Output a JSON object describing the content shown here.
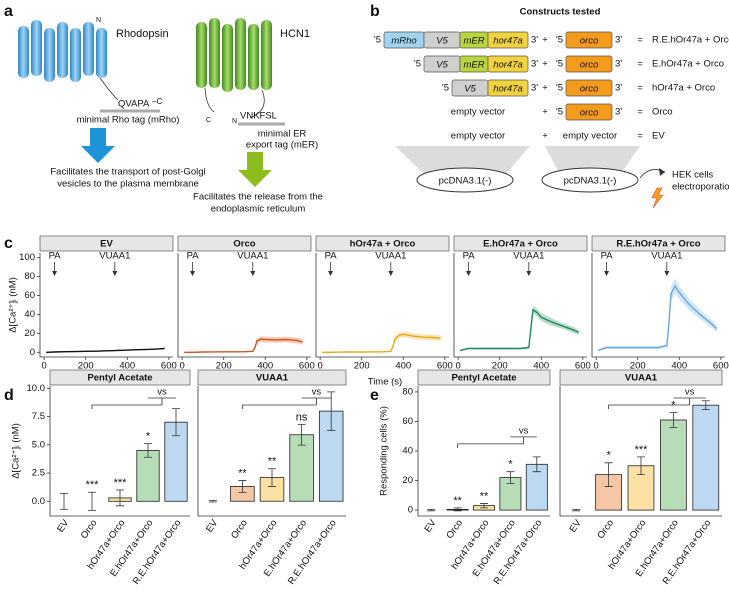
{
  "panel_labels": [
    "a",
    "b",
    "c",
    "d",
    "e"
  ],
  "panel_a": {
    "rhodopsin": "Rhodopsin",
    "hcn1": "HCN1",
    "rho_tag": "QVAPA",
    "rho_c": "–C",
    "n": "N",
    "c": "C",
    "rho_tag_name": "minimal Rho tag (mRho)",
    "er_tag": "VNKFSL",
    "er_tag_name": [
      "minimal ER",
      "export tag (mER)"
    ],
    "rho_text": [
      "Facilitates the transport of post-Golgi",
      "vesicles to the plasma membrane"
    ],
    "er_text": [
      "Facilitates the release from the",
      "endoplasmic reticulum"
    ]
  },
  "panel_b": {
    "title": "Constructs tested",
    "prime5": "'5",
    "prime3": "3'",
    "plus": "+",
    "equals": "=",
    "box_colors": {
      "mRho": "#9fd3ee",
      "V5": "#cfcfcf",
      "mER": "#b9d43c",
      "hor47a": "#f3d33d",
      "orco": "#f49a1d"
    },
    "rows": [
      {
        "left": [
          "mRho",
          "V5",
          "mER",
          "hor47a"
        ],
        "right": [
          "orco"
        ],
        "result": "R.E.hOr47a + Orco"
      },
      {
        "left": [
          "V5",
          "mER",
          "hor47a"
        ],
        "right": [
          "orco"
        ],
        "result": "E.hOr47a + Orco"
      },
      {
        "left": [
          "V5",
          "hor47a"
        ],
        "right": [
          "orco"
        ],
        "result": "hOr47a + Orco"
      },
      {
        "left": "empty vector",
        "right": [
          "orco"
        ],
        "result": "Orco"
      },
      {
        "left": "empty vector",
        "right": "empty vector",
        "result": "EV"
      }
    ],
    "vector": "pcDNA3.1(-)",
    "hek": [
      "HEK cells",
      "electroporation"
    ]
  },
  "chart_data": [
    {
      "type": "line",
      "title": "EV",
      "color": "#111111",
      "ylabel": "Δ[Ca²⁺]ᵢ (nM)",
      "x": [
        10,
        50,
        100,
        150,
        200,
        250,
        300,
        340,
        350,
        360,
        380,
        400,
        450,
        500,
        550,
        580
      ],
      "values": [
        0,
        0.3,
        0.6,
        0.8,
        1,
        1.2,
        1.5,
        1.8,
        1.9,
        2,
        2.1,
        2.3,
        2.7,
        3,
        3.5,
        4
      ],
      "errors": [
        0.6,
        0.6,
        0.6,
        0.6,
        0.6,
        0.6,
        0.6,
        0.6,
        0.6,
        0.6,
        0.6,
        0.6,
        0.6,
        0.6,
        0.6,
        0.6
      ],
      "xlim": [
        -20,
        620
      ],
      "ylim": [
        -5,
        105
      ],
      "xticks": [
        0,
        200,
        400,
        600
      ],
      "yticks": [
        0,
        20,
        40,
        60,
        80,
        100
      ],
      "annotations": [
        {
          "text": "PA",
          "x": 50
        },
        {
          "text": "VUAA1",
          "x": 340
        }
      ]
    },
    {
      "type": "line",
      "title": "Orco",
      "color": "#d4541c",
      "x": [
        10,
        50,
        100,
        150,
        200,
        250,
        300,
        340,
        350,
        360,
        380,
        400,
        450,
        500,
        550,
        580
      ],
      "values": [
        0,
        0,
        0.3,
        0.4,
        0.5,
        0.5,
        0.6,
        1,
        5,
        12,
        14,
        13.5,
        13,
        13.5,
        12.5,
        11
      ],
      "errors": [
        0.5,
        0.5,
        0.5,
        0.5,
        0.5,
        0.5,
        0.5,
        0.8,
        2,
        3,
        3,
        3,
        3,
        3,
        3,
        3
      ],
      "xlim": [
        -20,
        620
      ],
      "ylim": [
        -5,
        105
      ],
      "xticks": [
        0,
        200,
        400,
        600
      ],
      "annotations": [
        {
          "text": "PA",
          "x": 50
        },
        {
          "text": "VUAA1",
          "x": 340
        }
      ]
    },
    {
      "type": "line",
      "title": "hOr47a + Orco",
      "color": "#e8a91c",
      "xlabel": "Time (s)",
      "x": [
        10,
        50,
        100,
        150,
        200,
        250,
        300,
        340,
        350,
        360,
        380,
        400,
        450,
        500,
        550,
        580
      ],
      "values": [
        0,
        0,
        0.2,
        0.3,
        0.3,
        0.4,
        0.5,
        1,
        6,
        14,
        18,
        19,
        17,
        16,
        15.5,
        15
      ],
      "errors": [
        0.5,
        0.5,
        0.5,
        0.5,
        0.5,
        0.5,
        0.5,
        0.8,
        2,
        3,
        3,
        3,
        3,
        3,
        3,
        3
      ],
      "xlim": [
        -20,
        620
      ],
      "ylim": [
        -5,
        105
      ],
      "xticks": [
        0,
        200,
        400,
        600
      ],
      "annotations": [
        {
          "text": "PA",
          "x": 50
        },
        {
          "text": "VUAA1",
          "x": 340
        }
      ]
    },
    {
      "type": "line",
      "title": "E.hOr47a + Orco",
      "color": "#1e8a5a",
      "x": [
        10,
        50,
        100,
        150,
        200,
        250,
        300,
        340,
        350,
        360,
        380,
        400,
        450,
        500,
        550,
        580
      ],
      "values": [
        2,
        4,
        4,
        4,
        4,
        4,
        4,
        5,
        25,
        45,
        42,
        37,
        32,
        28,
        24,
        21
      ],
      "errors": [
        1,
        1,
        1,
        1,
        1,
        1,
        1,
        1.5,
        4,
        4,
        4,
        4,
        4,
        3,
        3,
        3
      ],
      "xlim": [
        -20,
        620
      ],
      "ylim": [
        -5,
        105
      ],
      "xticks": [
        0,
        200,
        400,
        600
      ],
      "annotations": [
        {
          "text": "PA",
          "x": 50
        },
        {
          "text": "VUAA1",
          "x": 340
        }
      ]
    },
    {
      "type": "line",
      "title": "R.E.hOr47a + Orco",
      "color": "#6aa8e0",
      "x": [
        10,
        50,
        100,
        150,
        200,
        250,
        300,
        340,
        350,
        360,
        380,
        400,
        450,
        500,
        550,
        580
      ],
      "values": [
        2,
        5,
        5,
        5,
        5,
        5,
        5,
        7,
        30,
        62,
        70,
        63,
        50,
        40,
        31,
        25
      ],
      "errors": [
        1,
        1.5,
        1.5,
        1.5,
        1.5,
        1.5,
        1.5,
        2,
        6,
        8,
        8,
        7,
        6,
        5,
        4,
        4
      ],
      "xlim": [
        -20,
        620
      ],
      "ylim": [
        -5,
        105
      ],
      "xticks": [
        0,
        200,
        400,
        600
      ],
      "annotations": [
        {
          "text": "PA",
          "x": 50
        },
        {
          "text": "VUAA1",
          "x": 340
        }
      ]
    },
    {
      "type": "bar",
      "title": "Pentyl Acetate",
      "ylabel": "Δ[Ca²⁺]ᵢ (nM)",
      "categories": [
        "EV",
        "Orco",
        "hOr47a+Orco",
        "E.hOr47a+Orco",
        "R.E.hOr47a+Orco"
      ],
      "values": [
        0,
        0,
        0.3,
        4.5,
        7
      ],
      "errors": [
        0.7,
        0.8,
        0.7,
        0.6,
        1.2
      ],
      "colors": [
        "#dcdcdc",
        "#f6c7a6",
        "#fbe2a4",
        "#b6dcb8",
        "#bdd8f1"
      ],
      "significance": [
        null,
        "***",
        "***",
        "*",
        null
      ],
      "comparison": "vs",
      "ylim": [
        -1.3,
        10.2
      ],
      "yticks": [
        {
          "value": 0,
          "label": "0.0"
        },
        {
          "value": 2.5,
          "label": "2.5"
        },
        {
          "value": 5,
          "label": "5.0"
        },
        {
          "value": 7.5,
          "label": "7.5"
        },
        {
          "value": 10,
          "label": "10.0"
        }
      ]
    },
    {
      "type": "bar",
      "title": "VUAA1",
      "categories": [
        "EV",
        "Orco",
        "hOr47a+Orco",
        "E.hOr47a+Orco",
        "R.E.hOr47a+Orco"
      ],
      "values": [
        0,
        10,
        16,
        45,
        61
      ],
      "errors": [
        0.5,
        4,
        6,
        7,
        13
      ],
      "colors": [
        "#dcdcdc",
        "#f6c7a6",
        "#fbe2a4",
        "#b6dcb8",
        "#bdd8f1"
      ],
      "significance": [
        null,
        "**",
        "**",
        "ns",
        null
      ],
      "comparison": "vs",
      "ylim": [
        -10,
        78
      ]
    },
    {
      "type": "bar",
      "title": "Pentyl Acetate",
      "ylabel": "Responding cells (%)",
      "categories": [
        "EV",
        "Orco",
        "hOr47a+Orco",
        "E.hOr47a+Orco",
        "R.E.hOr47a+Orco"
      ],
      "values": [
        0,
        0.5,
        3,
        22,
        31
      ],
      "errors": [
        0.5,
        1,
        1.5,
        4,
        5
      ],
      "colors": [
        "#dcdcdc",
        "#f6c7a6",
        "#fbe2a4",
        "#b6dcb8",
        "#bdd8f1"
      ],
      "significance": [
        null,
        "**",
        "**",
        "*",
        null
      ],
      "comparison": "vs",
      "ylim": [
        -4,
        84
      ],
      "yticks": [
        0,
        20,
        40,
        60,
        80
      ]
    },
    {
      "type": "bar",
      "title": "VUAA1",
      "categories": [
        "EV",
        "Orco",
        "hOr47a+Orco",
        "E.hOr47a+Orco",
        "R.E.hOr47a+Orco"
      ],
      "values": [
        0,
        24,
        30,
        61,
        71
      ],
      "errors": [
        0.5,
        8,
        6,
        5,
        3
      ],
      "colors": [
        "#dcdcdc",
        "#f6c7a6",
        "#fbe2a4",
        "#b6dcb8",
        "#bdd8f1"
      ],
      "significance": [
        null,
        "*",
        "***",
        "*",
        null
      ],
      "comparison": "vs",
      "ylim": [
        -4,
        84
      ]
    }
  ]
}
